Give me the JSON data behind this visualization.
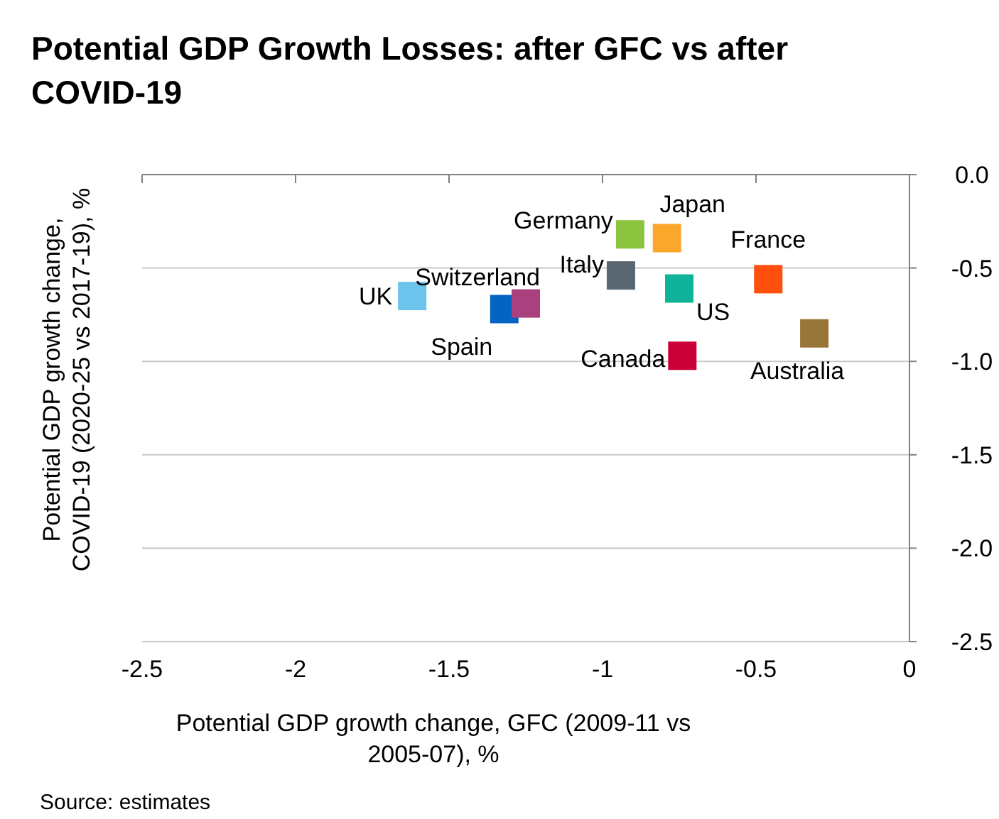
{
  "chart_data": {
    "type": "scatter",
    "title": "Potential GDP Growth Losses: after GFC vs after COVID-19",
    "xlabel": "Potential GDP growth change, GFC (2009-11 vs 2005-07), %",
    "ylabel": "Potential GDP growth change, COVID-19 (2020-25 vs 2017-19), %",
    "annotations": [
      "Source: estimates"
    ],
    "xlim": [
      -2.5,
      0
    ],
    "xticks": [
      -2.5,
      -2,
      -1.5,
      -1,
      -0.5,
      0
    ],
    "ylim": [
      -2.5,
      0
    ],
    "yticks": [
      {
        "value": 0,
        "label": "0.0"
      },
      -0.5,
      {
        "value": -1,
        "label": "-1.0"
      },
      -1.5,
      {
        "value": -2,
        "label": "-2.0"
      },
      -2.5
    ],
    "grid": "y",
    "marker": "square",
    "series": [
      {
        "name": "UK",
        "color": "#6cc4ec",
        "x": [
          -1.62
        ],
        "values": [
          -0.65
        ]
      },
      {
        "name": "Spain",
        "color": "#0563c1",
        "x": [
          -1.32
        ],
        "values": [
          -0.72
        ]
      },
      {
        "name": "Switzerland",
        "color": "#a9417f",
        "x": [
          -1.25
        ],
        "values": [
          -0.69
        ]
      },
      {
        "name": "Italy",
        "color": "#5a6771",
        "x": [
          -0.94
        ],
        "values": [
          -0.54
        ]
      },
      {
        "name": "Germany",
        "color": "#8cc43f",
        "x": [
          -0.91
        ],
        "values": [
          -0.32
        ]
      },
      {
        "name": "Japan",
        "color": "#fba72b",
        "x": [
          -0.79
        ],
        "values": [
          -0.34
        ]
      },
      {
        "name": "US",
        "color": "#0fb39a",
        "x": [
          -0.75
        ],
        "values": [
          -0.61
        ]
      },
      {
        "name": "France",
        "color": "#fe4f0c",
        "x": [
          -0.46
        ],
        "values": [
          -0.56
        ]
      },
      {
        "name": "Canada",
        "color": "#cc0038",
        "x": [
          -0.74
        ],
        "values": [
          -0.97
        ]
      },
      {
        "name": "Australia",
        "color": "#987538",
        "x": [
          -0.31
        ],
        "values": [
          -0.85
        ]
      }
    ]
  }
}
